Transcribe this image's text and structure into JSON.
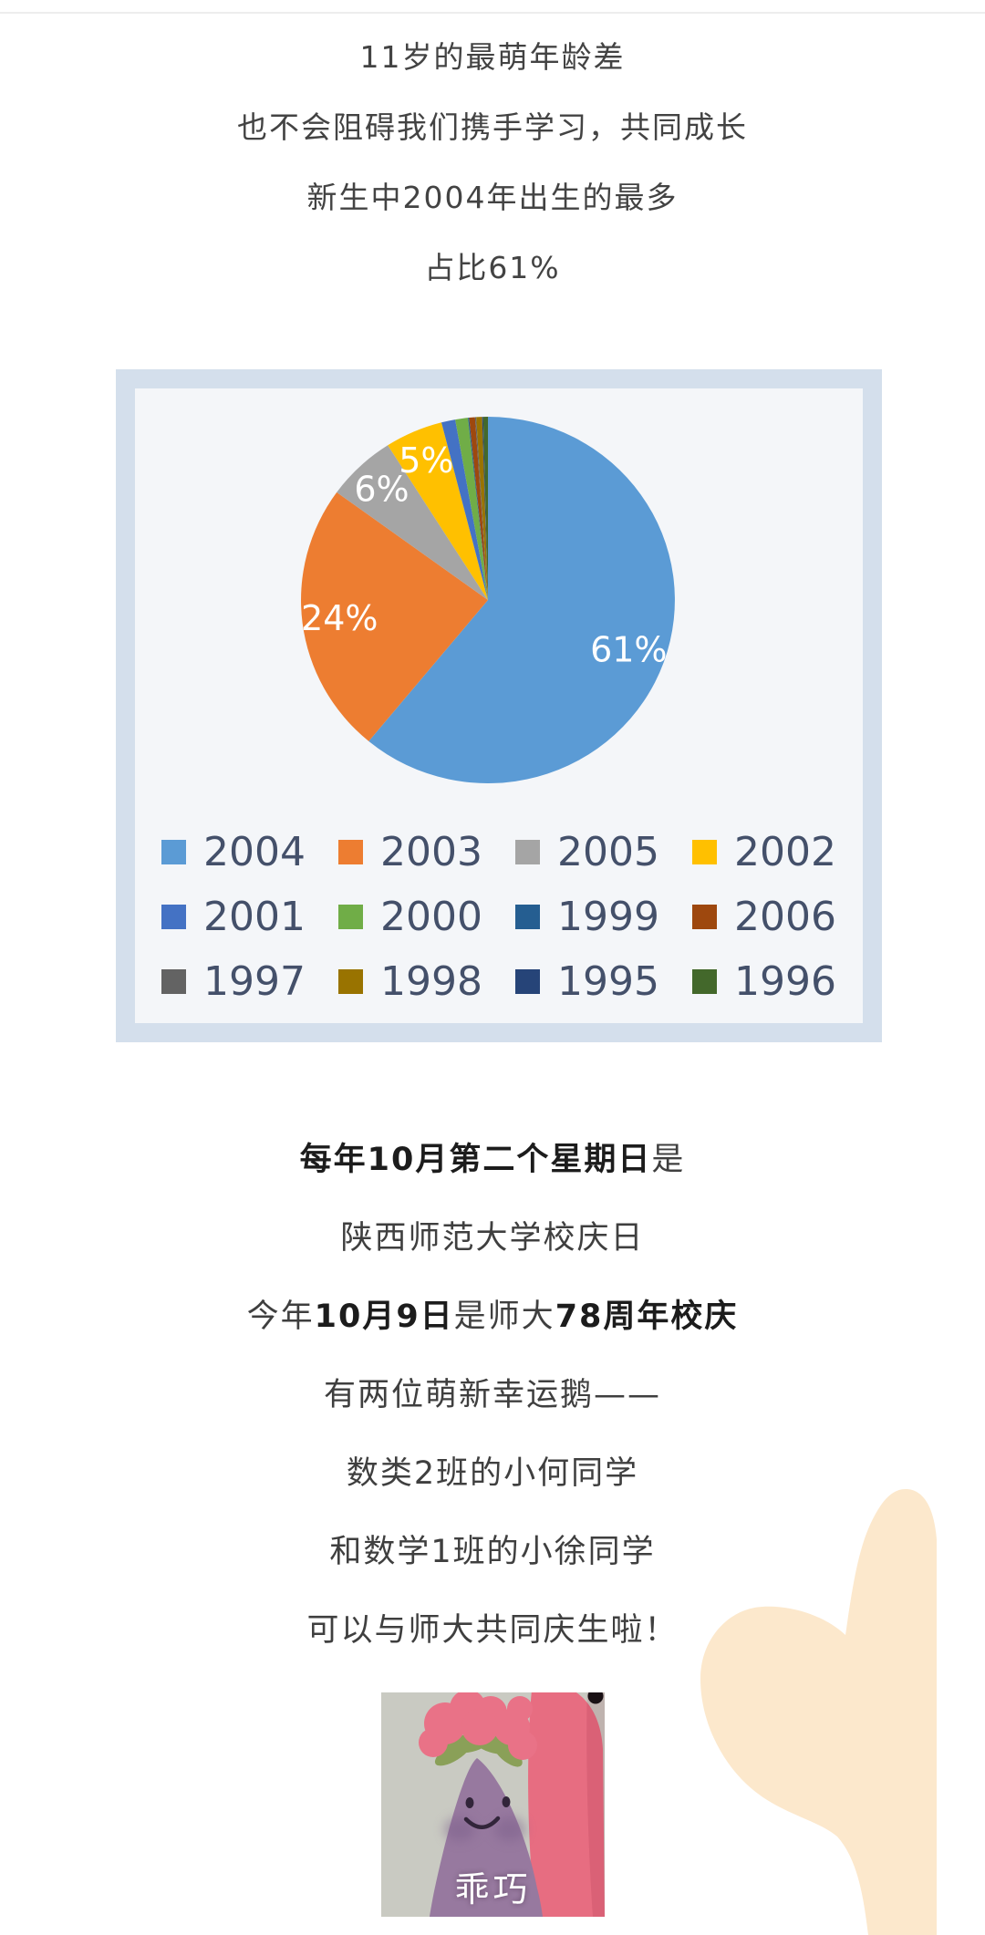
{
  "page": {
    "background": "#ffffff",
    "divider_color": "#ededed"
  },
  "intro": {
    "lines": [
      "11岁的最萌年龄差",
      "也不会阻碍我们携手学习，共同成长",
      "新生中2004年出生的最多",
      "占比61%"
    ]
  },
  "chart_card": {
    "border_color": "#d4dfec",
    "background": "#f4f6f9"
  },
  "chart_data": {
    "type": "pie",
    "title": "",
    "start_angle_deg": 0,
    "direction": "clockwise",
    "unit": "%",
    "series": [
      {
        "name": "2004",
        "value": 61,
        "color": "#5B9BD5",
        "label": "61%"
      },
      {
        "name": "2003",
        "value": 24,
        "color": "#ED7D31",
        "label": "24%"
      },
      {
        "name": "2005",
        "value": 6,
        "color": "#A5A5A5",
        "label": "6%"
      },
      {
        "name": "2002",
        "value": 5,
        "color": "#FFC000",
        "label": "5%"
      },
      {
        "name": "2001",
        "value": 1.2,
        "color": "#4472C4",
        "label": ""
      },
      {
        "name": "2000",
        "value": 1.1,
        "color": "#70AD47",
        "label": ""
      },
      {
        "name": "1999",
        "value": 0.1,
        "color": "#255E91",
        "label": ""
      },
      {
        "name": "2006",
        "value": 0.5,
        "color": "#9E480E",
        "label": ""
      },
      {
        "name": "1997",
        "value": 0.1,
        "color": "#636363",
        "label": ""
      },
      {
        "name": "1998",
        "value": 0.5,
        "color": "#997300",
        "label": ""
      },
      {
        "name": "1995",
        "value": 0.1,
        "color": "#264478",
        "label": ""
      },
      {
        "name": "1996",
        "value": 0.4,
        "color": "#43682B",
        "label": ""
      }
    ],
    "legend": {
      "position": "bottom",
      "rows": 3,
      "cols": 4,
      "text_color": "#44506a"
    }
  },
  "story": {
    "lines": [
      {
        "runs": [
          {
            "text": "每年10月第二个星期日",
            "bold": true
          },
          {
            "text": "是",
            "bold": false
          }
        ]
      },
      {
        "runs": [
          {
            "text": "陕西师范大学校庆日",
            "bold": false
          }
        ]
      },
      {
        "runs": [
          {
            "text": "今年",
            "bold": false
          },
          {
            "text": "10月9日",
            "bold": true
          },
          {
            "text": "是师大",
            "bold": false
          },
          {
            "text": "78周年校庆",
            "bold": true
          }
        ]
      },
      {
        "runs": [
          {
            "text": "有两位萌新幸运鹅——",
            "bold": false
          }
        ]
      },
      {
        "runs": [
          {
            "text": "数类2班的小何同学",
            "bold": false
          }
        ]
      },
      {
        "runs": [
          {
            "text": "和数学1班的小徐同学",
            "bold": false
          }
        ]
      },
      {
        "runs": [
          {
            "text": "可以与师大共同庆生啦！",
            "bold": false
          }
        ]
      }
    ]
  },
  "sticker": {
    "caption": "乖巧",
    "colors": {
      "bg": "#c9cac2",
      "body": "#97799f",
      "cheek": "#7c5e8a",
      "face": "#32253a",
      "stem": "#8aa058",
      "crown": "#e97287",
      "companion": "#e76d81",
      "companion_eye": "#1a1115"
    }
  },
  "decoration": {
    "blob_color": "#fce8cc"
  }
}
